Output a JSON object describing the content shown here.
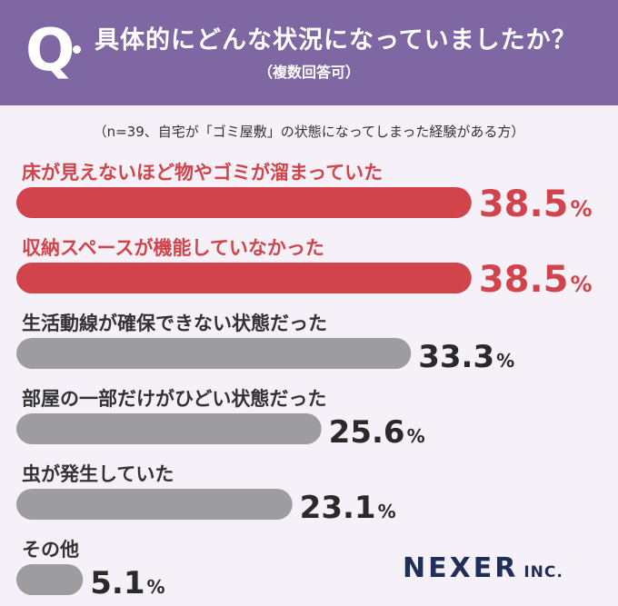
{
  "header": {
    "q_mark": "Q",
    "title": "具体的にどんな状況になっていましたか？",
    "subtitle": "（複数回答可）"
  },
  "note": "（n=39、自宅が「ゴミ屋敷」の状態になってしまった経験がある方）",
  "logo": {
    "main": "NEXER",
    "sub": "INC."
  },
  "colors": {
    "highlight": "#d2444b",
    "normal": "#9d9d9f",
    "header": "#7e67a2",
    "background": "#f6f0f8"
  },
  "chart_data": {
    "type": "bar",
    "orientation": "horizontal",
    "unit": "%",
    "categories": [
      "床が見えないほど物やゴミが溜まっていた",
      "収納スペースが機能していなかった",
      "生活動線が確保できない状態だった",
      "部屋の一部だけがひどい状態だった",
      "虫が発生していた",
      "その他"
    ],
    "values": [
      38.5,
      38.5,
      33.3,
      25.6,
      23.1,
      5.1
    ],
    "value_labels": [
      "38.5",
      "38.5",
      "33.3",
      "25.6",
      "23.1",
      "5.1"
    ],
    "highlighted": [
      true,
      true,
      false,
      false,
      false,
      false
    ]
  }
}
